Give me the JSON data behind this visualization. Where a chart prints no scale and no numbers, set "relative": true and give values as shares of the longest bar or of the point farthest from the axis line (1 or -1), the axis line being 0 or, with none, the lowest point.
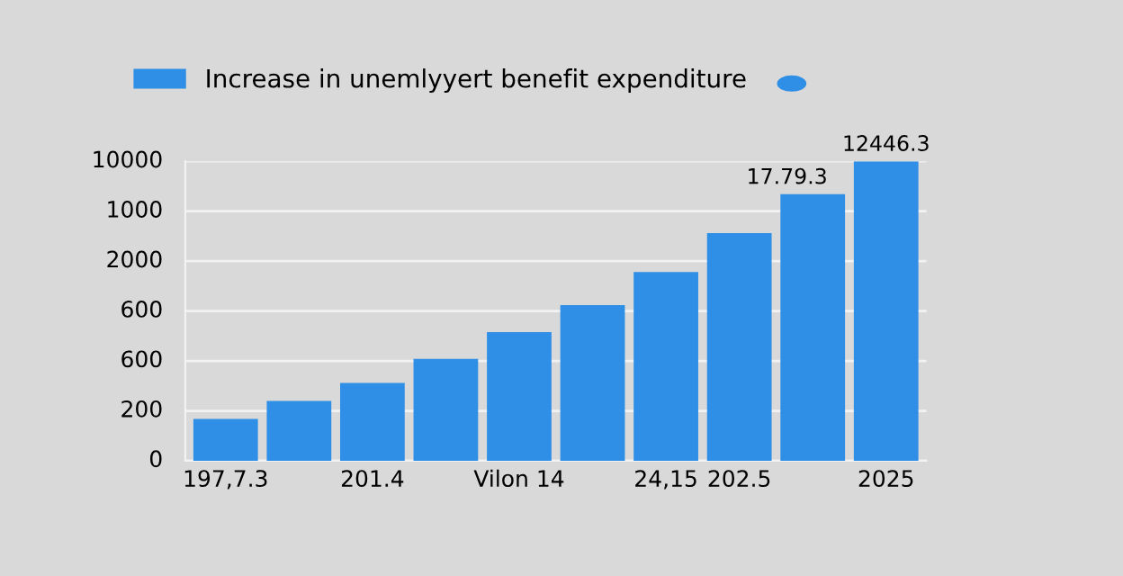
{
  "chart_data": {
    "type": "bar",
    "relative": true,
    "categories": [
      "197,7.3",
      null,
      "201.4",
      null,
      "Vilon 14",
      null,
      "24,15",
      "202.5",
      null,
      "2025"
    ],
    "series": [
      {
        "name": "Increase in unemlyyert benefit expenditure",
        "color": "#2f8fe6",
        "values": [
          0.14,
          0.2,
          0.26,
          0.34,
          0.43,
          0.52,
          0.63,
          0.76,
          0.89,
          1.0
        ]
      }
    ],
    "annotations": [
      "0",
      "200",
      "600",
      "600",
      "2000",
      "1000",
      "10000",
      "17.79.3",
      "12446.3"
    ],
    "grid": "y",
    "legend": "top left"
  }
}
